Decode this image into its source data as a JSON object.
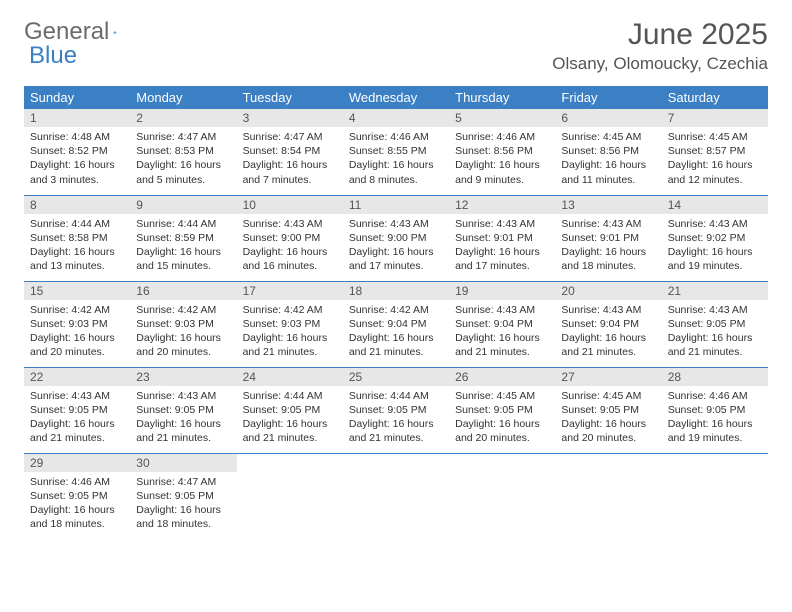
{
  "logo": {
    "word1": "General",
    "word2": "Blue"
  },
  "title": "June 2025",
  "location": "Olsany, Olomoucky, Czechia",
  "colors": {
    "header_bg": "#3b7fc4",
    "header_text": "#ffffff",
    "daynum_bg": "#e7e7e7",
    "text": "#333333",
    "rule": "#3b7fc4"
  },
  "weekdays": [
    "Sunday",
    "Monday",
    "Tuesday",
    "Wednesday",
    "Thursday",
    "Friday",
    "Saturday"
  ],
  "days": [
    {
      "n": "1",
      "sr": "4:48 AM",
      "ss": "8:52 PM",
      "dl": "16 hours and 3 minutes."
    },
    {
      "n": "2",
      "sr": "4:47 AM",
      "ss": "8:53 PM",
      "dl": "16 hours and 5 minutes."
    },
    {
      "n": "3",
      "sr": "4:47 AM",
      "ss": "8:54 PM",
      "dl": "16 hours and 7 minutes."
    },
    {
      "n": "4",
      "sr": "4:46 AM",
      "ss": "8:55 PM",
      "dl": "16 hours and 8 minutes."
    },
    {
      "n": "5",
      "sr": "4:46 AM",
      "ss": "8:56 PM",
      "dl": "16 hours and 9 minutes."
    },
    {
      "n": "6",
      "sr": "4:45 AM",
      "ss": "8:56 PM",
      "dl": "16 hours and 11 minutes."
    },
    {
      "n": "7",
      "sr": "4:45 AM",
      "ss": "8:57 PM",
      "dl": "16 hours and 12 minutes."
    },
    {
      "n": "8",
      "sr": "4:44 AM",
      "ss": "8:58 PM",
      "dl": "16 hours and 13 minutes."
    },
    {
      "n": "9",
      "sr": "4:44 AM",
      "ss": "8:59 PM",
      "dl": "16 hours and 15 minutes."
    },
    {
      "n": "10",
      "sr": "4:43 AM",
      "ss": "9:00 PM",
      "dl": "16 hours and 16 minutes."
    },
    {
      "n": "11",
      "sr": "4:43 AM",
      "ss": "9:00 PM",
      "dl": "16 hours and 17 minutes."
    },
    {
      "n": "12",
      "sr": "4:43 AM",
      "ss": "9:01 PM",
      "dl": "16 hours and 17 minutes."
    },
    {
      "n": "13",
      "sr": "4:43 AM",
      "ss": "9:01 PM",
      "dl": "16 hours and 18 minutes."
    },
    {
      "n": "14",
      "sr": "4:43 AM",
      "ss": "9:02 PM",
      "dl": "16 hours and 19 minutes."
    },
    {
      "n": "15",
      "sr": "4:42 AM",
      "ss": "9:03 PM",
      "dl": "16 hours and 20 minutes."
    },
    {
      "n": "16",
      "sr": "4:42 AM",
      "ss": "9:03 PM",
      "dl": "16 hours and 20 minutes."
    },
    {
      "n": "17",
      "sr": "4:42 AM",
      "ss": "9:03 PM",
      "dl": "16 hours and 21 minutes."
    },
    {
      "n": "18",
      "sr": "4:42 AM",
      "ss": "9:04 PM",
      "dl": "16 hours and 21 minutes."
    },
    {
      "n": "19",
      "sr": "4:43 AM",
      "ss": "9:04 PM",
      "dl": "16 hours and 21 minutes."
    },
    {
      "n": "20",
      "sr": "4:43 AM",
      "ss": "9:04 PM",
      "dl": "16 hours and 21 minutes."
    },
    {
      "n": "21",
      "sr": "4:43 AM",
      "ss": "9:05 PM",
      "dl": "16 hours and 21 minutes."
    },
    {
      "n": "22",
      "sr": "4:43 AM",
      "ss": "9:05 PM",
      "dl": "16 hours and 21 minutes."
    },
    {
      "n": "23",
      "sr": "4:43 AM",
      "ss": "9:05 PM",
      "dl": "16 hours and 21 minutes."
    },
    {
      "n": "24",
      "sr": "4:44 AM",
      "ss": "9:05 PM",
      "dl": "16 hours and 21 minutes."
    },
    {
      "n": "25",
      "sr": "4:44 AM",
      "ss": "9:05 PM",
      "dl": "16 hours and 21 minutes."
    },
    {
      "n": "26",
      "sr": "4:45 AM",
      "ss": "9:05 PM",
      "dl": "16 hours and 20 minutes."
    },
    {
      "n": "27",
      "sr": "4:45 AM",
      "ss": "9:05 PM",
      "dl": "16 hours and 20 minutes."
    },
    {
      "n": "28",
      "sr": "4:46 AM",
      "ss": "9:05 PM",
      "dl": "16 hours and 19 minutes."
    },
    {
      "n": "29",
      "sr": "4:46 AM",
      "ss": "9:05 PM",
      "dl": "16 hours and 18 minutes."
    },
    {
      "n": "30",
      "sr": "4:47 AM",
      "ss": "9:05 PM",
      "dl": "16 hours and 18 minutes."
    }
  ],
  "labels": {
    "sunrise": "Sunrise:",
    "sunset": "Sunset:",
    "daylight": "Daylight:"
  }
}
